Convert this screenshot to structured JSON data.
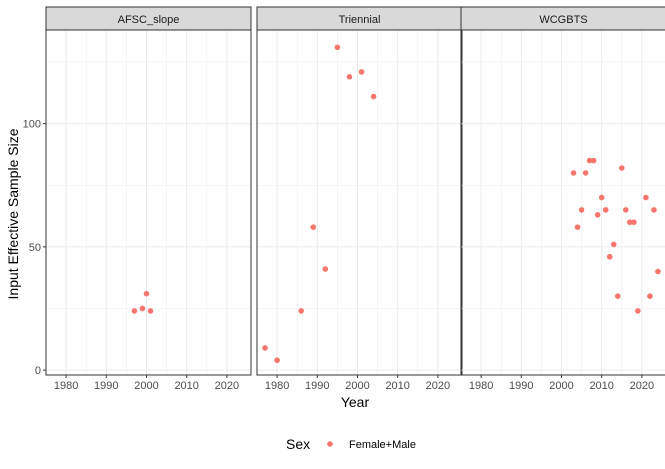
{
  "chart_data": {
    "type": "scatter",
    "xlabel": "Year",
    "ylabel": "Input Effective Sample Size",
    "xlim": [
      1975,
      2026
    ],
    "ylim": [
      -2,
      138
    ],
    "x_ticks": [
      1980,
      1990,
      2000,
      2010,
      2020
    ],
    "y_ticks": [
      0,
      50,
      100
    ],
    "grid": true,
    "legend": {
      "title": "Sex",
      "position": "bottom",
      "entries": [
        "Female+Male"
      ]
    },
    "colors": {
      "point": "#F8766D",
      "strip": "#D9D9D9",
      "grid": "#EBEBEB",
      "border": "#333333",
      "axis_text": "#4D4D4D"
    },
    "panels": [
      {
        "name": "AFSC_slope",
        "series": [
          {
            "name": "Female+Male",
            "x": [
              1997,
              1999,
              2000,
              2001
            ],
            "y": [
              24,
              25,
              31,
              24
            ]
          }
        ]
      },
      {
        "name": "Triennial",
        "series": [
          {
            "name": "Female+Male",
            "x": [
              1977,
              1980,
              1986,
              1989,
              1992,
              1995,
              1998,
              2001,
              2004
            ],
            "y": [
              9,
              4,
              24,
              58,
              41,
              131,
              119,
              121,
              111
            ]
          }
        ]
      },
      {
        "name": "WCGBTS",
        "series": [
          {
            "name": "Female+Male",
            "x": [
              2003,
              2004,
              2005,
              2006,
              2007,
              2008,
              2009,
              2010,
              2011,
              2012,
              2013,
              2014,
              2015,
              2016,
              2017,
              2018,
              2019,
              2021,
              2022,
              2023,
              2024
            ],
            "y": [
              80,
              58,
              65,
              80,
              85,
              85,
              63,
              70,
              65,
              46,
              51,
              30,
              82,
              65,
              60,
              60,
              24,
              70,
              30,
              65,
              40
            ]
          }
        ]
      }
    ]
  }
}
